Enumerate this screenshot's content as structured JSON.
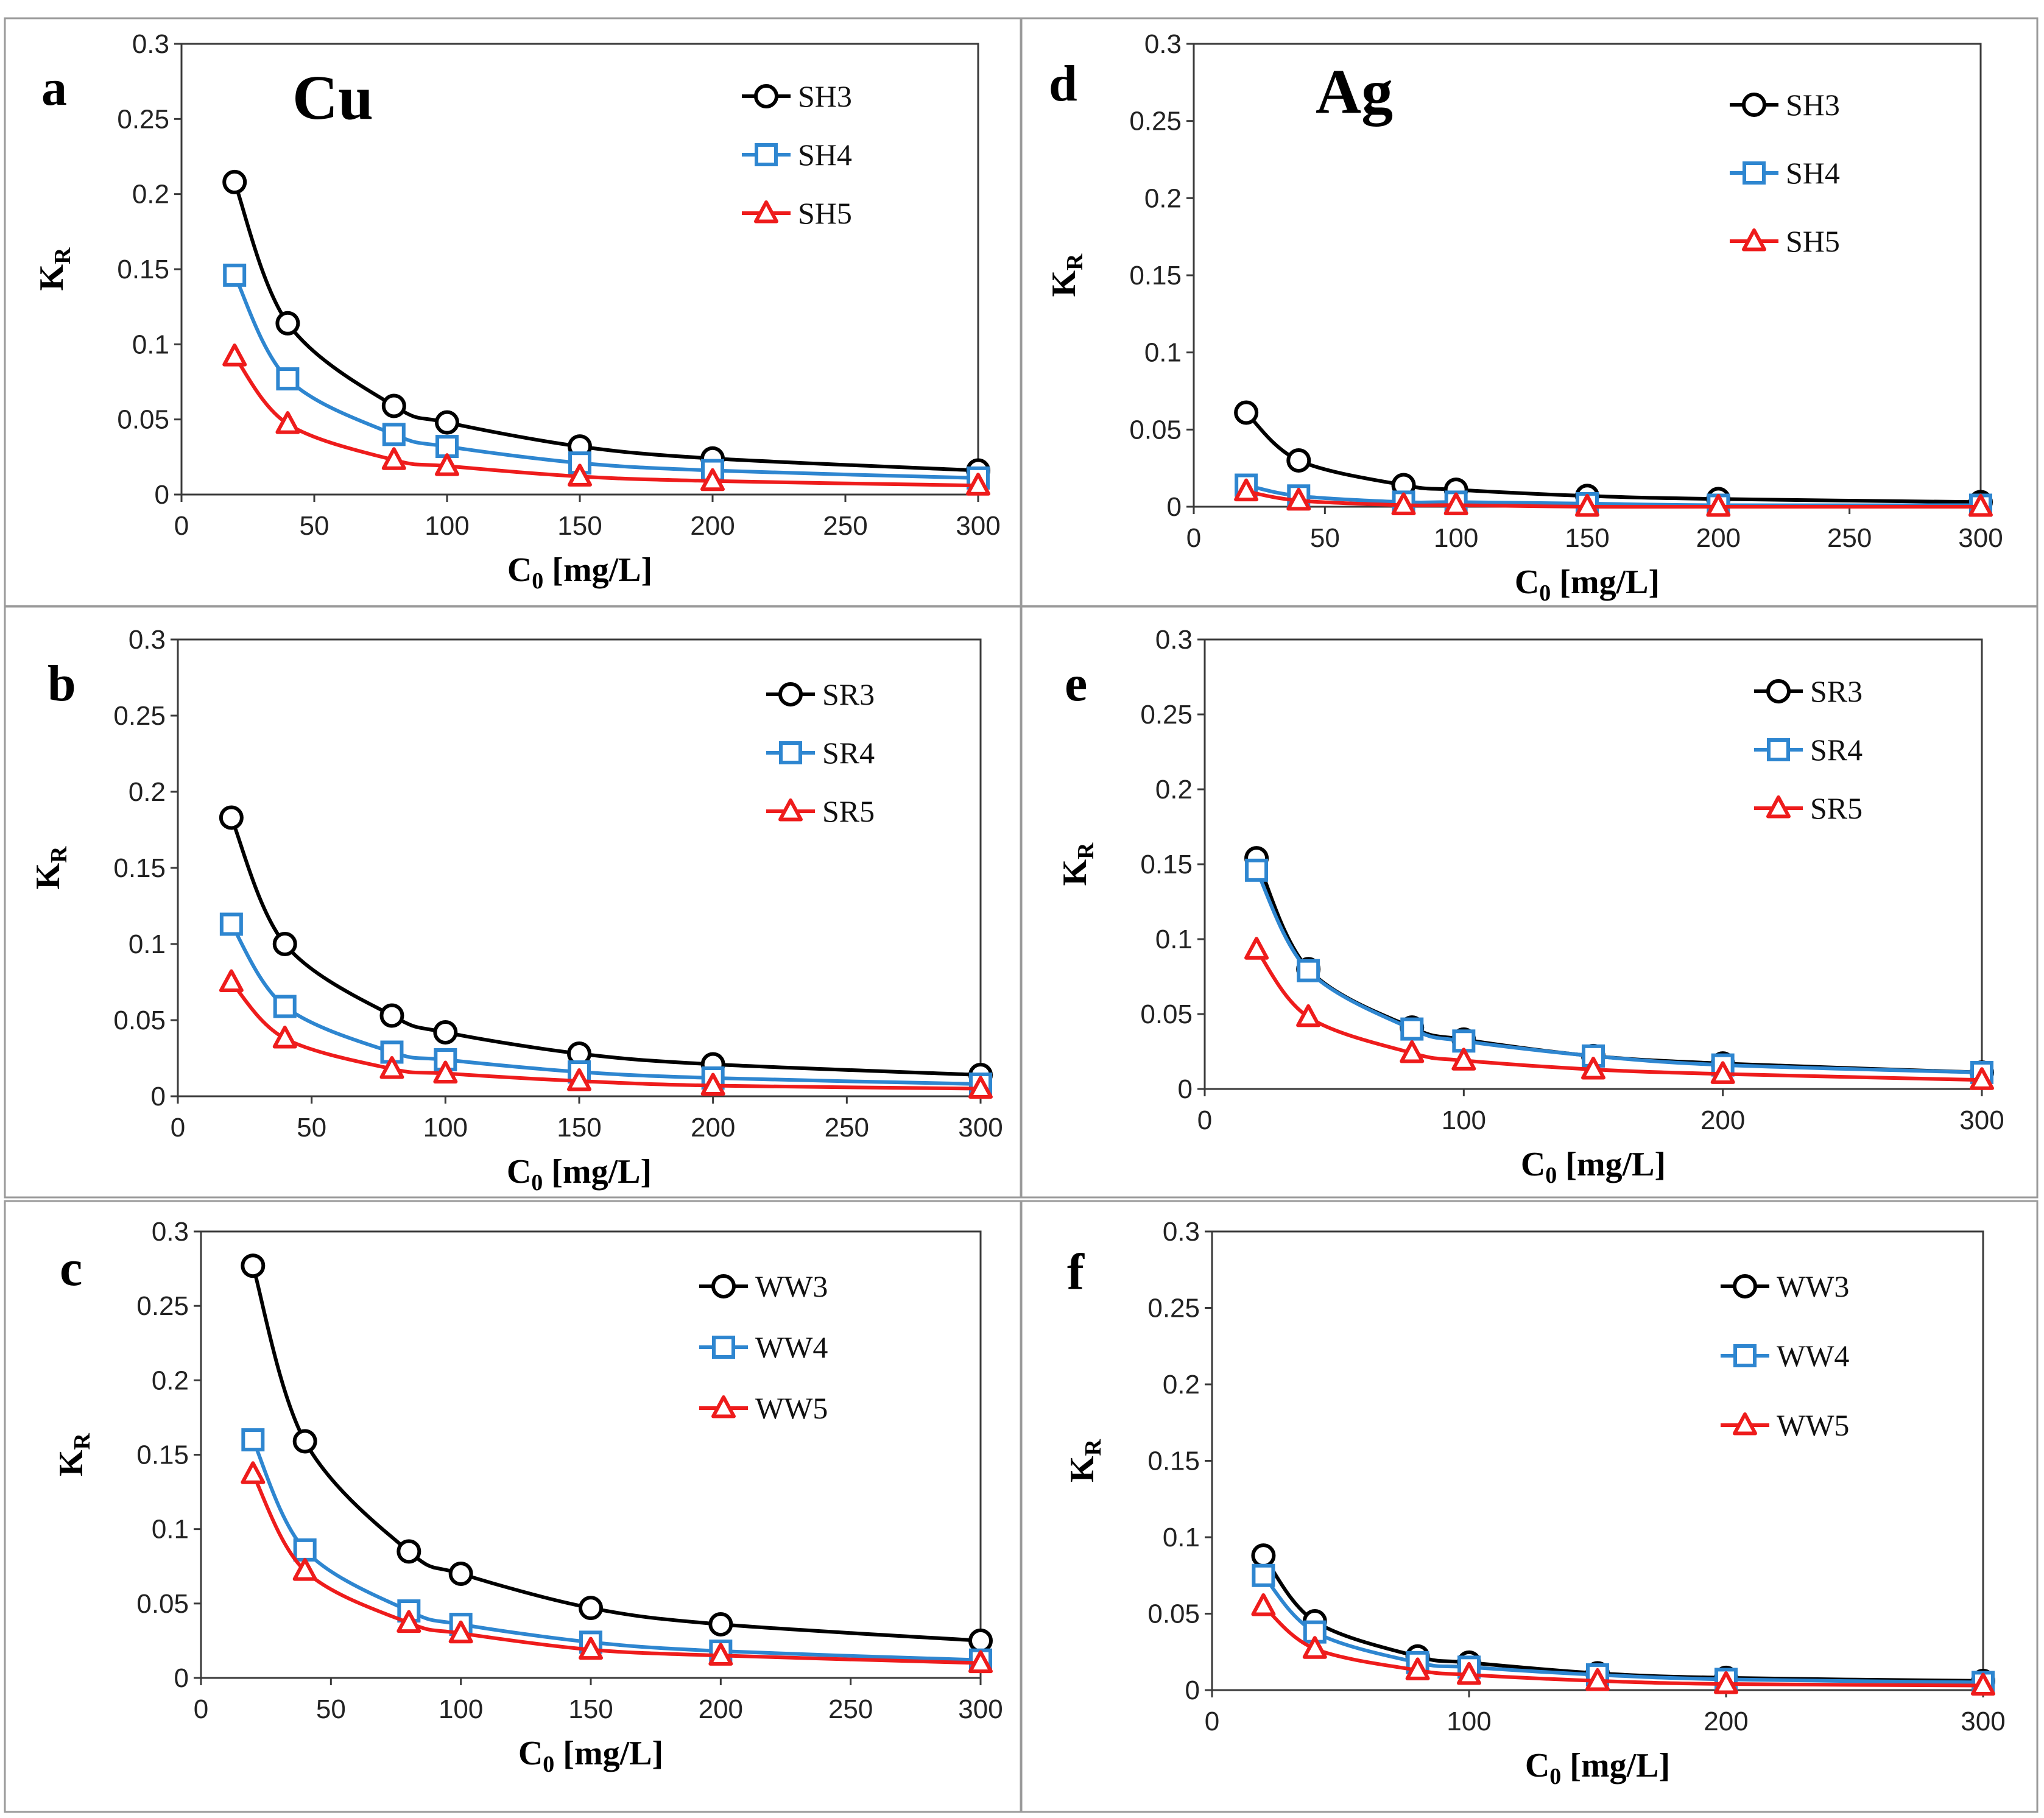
{
  "colors": {
    "series": [
      "#000000",
      "#2e86d0",
      "#ee1c1c"
    ]
  },
  "markers": [
    "circle",
    "square",
    "triangle"
  ],
  "x_title_prefix": "C",
  "x_title_sub": "0",
  "x_title_suffix": " [mg/L]",
  "y_title_main": "K",
  "y_title_sub": "R",
  "chart_data": [
    {
      "panel": "a",
      "metal": "Cu",
      "type": "line",
      "xlim": [
        0,
        300
      ],
      "ylim": [
        0,
        0.3
      ],
      "xticks": [
        "0",
        "50",
        "100",
        "150",
        "200",
        "250",
        "300"
      ],
      "yticks": [
        "0",
        "0.05",
        "0.1",
        "0.15",
        "0.2",
        "0.25",
        "0.3"
      ],
      "xlabel": "C0 [mg/L]",
      "ylabel": "KR",
      "x": [
        20,
        40,
        80,
        100,
        150,
        200,
        300
      ],
      "series": [
        {
          "name": "SH3",
          "values": [
            0.208,
            0.114,
            0.059,
            0.048,
            0.032,
            0.024,
            0.016
          ]
        },
        {
          "name": "SH4",
          "values": [
            0.146,
            0.077,
            0.04,
            0.032,
            0.021,
            0.016,
            0.011
          ]
        },
        {
          "name": "SH5",
          "values": [
            0.092,
            0.047,
            0.023,
            0.019,
            0.012,
            0.009,
            0.006
          ]
        }
      ]
    },
    {
      "panel": "d",
      "metal": "Ag",
      "type": "line",
      "xlim": [
        0,
        300
      ],
      "ylim": [
        0,
        0.3
      ],
      "xticks": [
        "0",
        "50",
        "100",
        "150",
        "200",
        "250",
        "300"
      ],
      "yticks": [
        "0",
        "0.05",
        "0.1",
        "0.15",
        "0.2",
        "0.25",
        "0.3"
      ],
      "xlabel": "C0 [mg/L]",
      "ylabel": "KR",
      "x": [
        20,
        40,
        80,
        100,
        150,
        200,
        300
      ],
      "series": [
        {
          "name": "SH3",
          "values": [
            0.061,
            0.03,
            0.014,
            0.011,
            0.007,
            0.005,
            0.003
          ]
        },
        {
          "name": "SH4",
          "values": [
            0.014,
            0.007,
            0.003,
            0.003,
            0.002,
            0.001,
            0.001
          ]
        },
        {
          "name": "SH5",
          "values": [
            0.01,
            0.004,
            0.001,
            0.001,
            0.0,
            0.0,
            0.0
          ]
        }
      ]
    },
    {
      "panel": "b",
      "metal": "",
      "type": "line",
      "xlim": [
        0,
        300
      ],
      "ylim": [
        0,
        0.3
      ],
      "xticks": [
        "0",
        "50",
        "100",
        "150",
        "200",
        "250",
        "300"
      ],
      "yticks": [
        "0",
        "0.05",
        "0.1",
        "0.15",
        "0.2",
        "0.25",
        "0.3"
      ],
      "xlabel": "C0 [mg/L]",
      "ylabel": "KR",
      "x": [
        20,
        40,
        80,
        100,
        150,
        200,
        300
      ],
      "series": [
        {
          "name": "SR3",
          "values": [
            0.183,
            0.1,
            0.053,
            0.042,
            0.028,
            0.021,
            0.014
          ]
        },
        {
          "name": "SR4",
          "values": [
            0.113,
            0.059,
            0.029,
            0.024,
            0.016,
            0.012,
            0.008
          ]
        },
        {
          "name": "SR5",
          "values": [
            0.075,
            0.038,
            0.018,
            0.015,
            0.01,
            0.007,
            0.005
          ]
        }
      ]
    },
    {
      "panel": "e",
      "metal": "",
      "type": "line",
      "xlim": [
        0,
        300
      ],
      "ylim": [
        0,
        0.3
      ],
      "xticks": [
        "0",
        "100",
        "200",
        "300"
      ],
      "yticks": [
        "0",
        "0.05",
        "0.1",
        "0.15",
        "0.2",
        "0.25",
        "0.3"
      ],
      "xlabel": "C0 [mg/L]",
      "ylabel": "KR",
      "x": [
        20,
        40,
        80,
        100,
        150,
        200,
        300
      ],
      "series": [
        {
          "name": "SR3",
          "values": [
            0.154,
            0.08,
            0.041,
            0.033,
            0.022,
            0.017,
            0.011
          ]
        },
        {
          "name": "SR4",
          "values": [
            0.146,
            0.079,
            0.04,
            0.032,
            0.022,
            0.016,
            0.011
          ]
        },
        {
          "name": "SR5",
          "values": [
            0.093,
            0.048,
            0.024,
            0.019,
            0.013,
            0.01,
            0.006
          ]
        }
      ]
    },
    {
      "panel": "c",
      "metal": "",
      "type": "line",
      "xlim": [
        0,
        300
      ],
      "ylim": [
        0,
        0.3
      ],
      "xticks": [
        "0",
        "50",
        "100",
        "150",
        "200",
        "250",
        "300"
      ],
      "yticks": [
        "0",
        "0.05",
        "0.1",
        "0.15",
        "0.2",
        "0.25",
        "0.3"
      ],
      "xlabel": "C0 [mg/L]",
      "ylabel": "KR",
      "x": [
        20,
        40,
        80,
        100,
        150,
        200,
        300
      ],
      "series": [
        {
          "name": "WW3",
          "values": [
            0.277,
            0.159,
            0.085,
            0.07,
            0.047,
            0.036,
            0.025
          ]
        },
        {
          "name": "WW4",
          "values": [
            0.16,
            0.086,
            0.045,
            0.036,
            0.024,
            0.018,
            0.012
          ]
        },
        {
          "name": "WW5",
          "values": [
            0.137,
            0.072,
            0.037,
            0.03,
            0.019,
            0.015,
            0.01
          ]
        }
      ]
    },
    {
      "panel": "f",
      "metal": "",
      "type": "line",
      "xlim": [
        0,
        300
      ],
      "ylim": [
        0,
        0.3
      ],
      "xticks": [
        "0",
        "100",
        "200",
        "300"
      ],
      "yticks": [
        "0",
        "0.05",
        "0.1",
        "0.15",
        "0.2",
        "0.25",
        "0.3"
      ],
      "xlabel": "C0 [mg/L]",
      "ylabel": "KR",
      "x": [
        20,
        40,
        80,
        100,
        150,
        200,
        300
      ],
      "series": [
        {
          "name": "WW3",
          "values": [
            0.088,
            0.045,
            0.022,
            0.018,
            0.011,
            0.008,
            0.006
          ]
        },
        {
          "name": "WW4",
          "values": [
            0.075,
            0.038,
            0.018,
            0.015,
            0.01,
            0.007,
            0.005
          ]
        },
        {
          "name": "WW5",
          "values": [
            0.055,
            0.027,
            0.013,
            0.01,
            0.006,
            0.004,
            0.003
          ]
        }
      ]
    }
  ]
}
